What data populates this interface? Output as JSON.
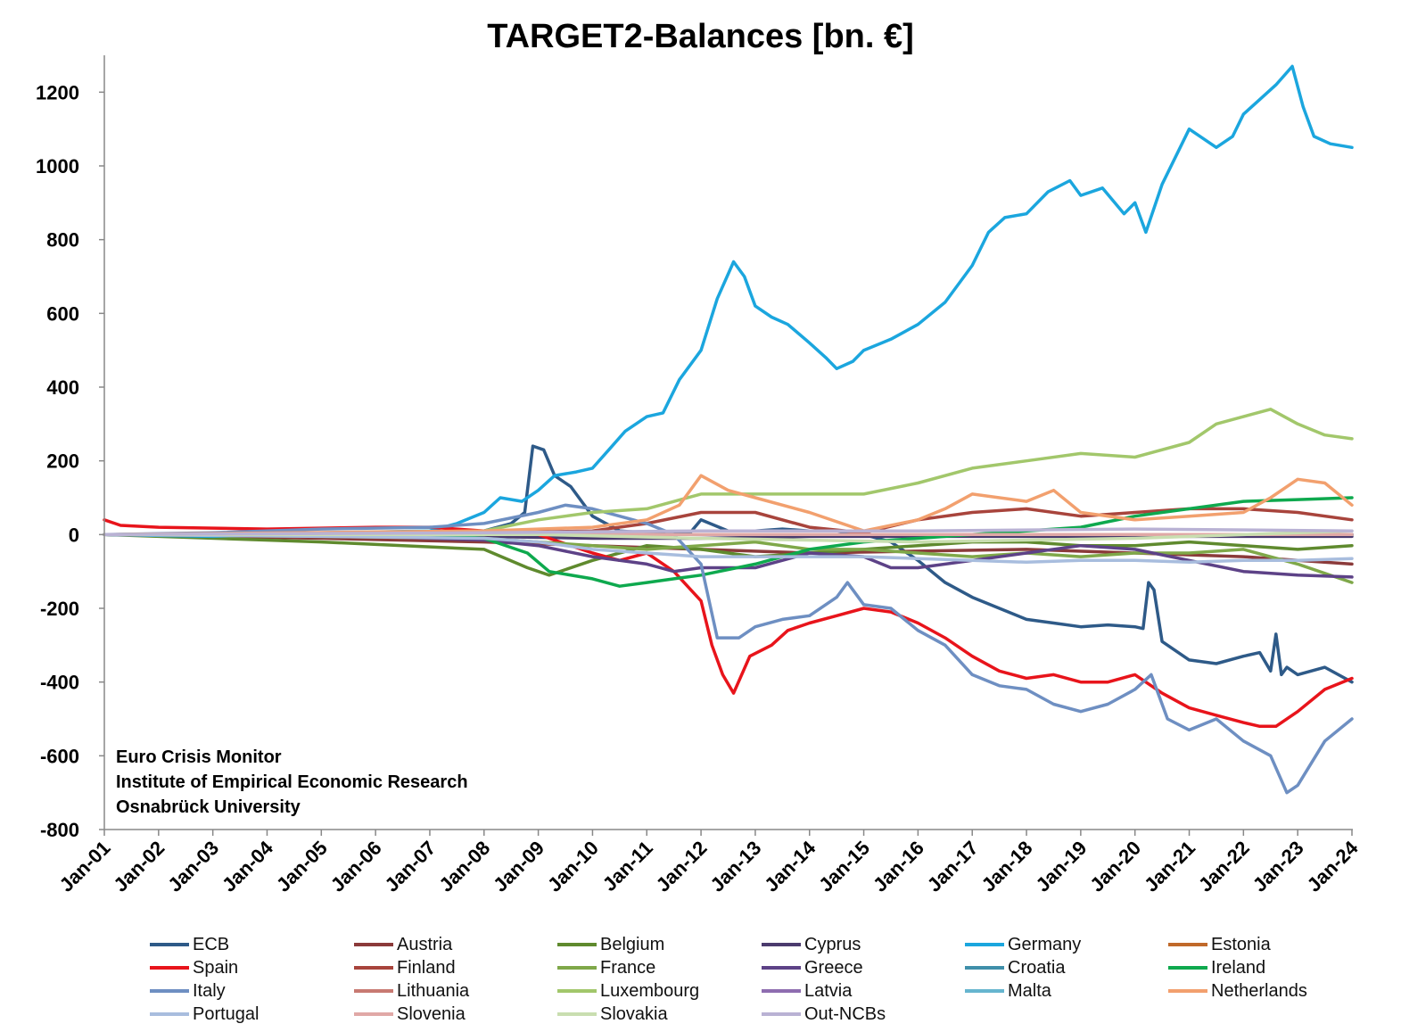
{
  "chart_data": {
    "type": "line",
    "title": "TARGET2-Balances [bn. €]",
    "xlabel": "",
    "ylabel": "",
    "ylim": [
      -800,
      1300
    ],
    "yticks": [
      1200,
      1000,
      800,
      600,
      400,
      200,
      0,
      -200,
      -400,
      -600,
      -800
    ],
    "xticks": [
      "Jan-01",
      "Jan-02",
      "Jan-03",
      "Jan-04",
      "Jan-05",
      "Jan-06",
      "Jan-07",
      "Jan-08",
      "Jan-09",
      "Jan-10",
      "Jan-11",
      "Jan-12",
      "Jan-13",
      "Jan-14",
      "Jan-15",
      "Jan-16",
      "Jan-17",
      "Jan-18",
      "Jan-19",
      "Jan-20",
      "Jan-21",
      "Jan-22",
      "Jan-23",
      "Jan-24"
    ],
    "xlim": [
      2001,
      2024.1
    ],
    "grid": false,
    "legend_position": "bottom",
    "credit": [
      "Euro Crisis Monitor",
      "Institute of Empirical Economic Research",
      "Osnabrück University"
    ],
    "series": [
      {
        "name": "ECB",
        "color": "#2E5A88",
        "x": [
          2001,
          2004,
          2007,
          2008,
          2008.5,
          2008.75,
          2008.9,
          2009.1,
          2009.3,
          2009.6,
          2010,
          2010.5,
          2011,
          2011.8,
          2012,
          2012.5,
          2013,
          2013.5,
          2014,
          2014.5,
          2015,
          2015.5,
          2016,
          2016.5,
          2017,
          2017.5,
          2018,
          2018.5,
          2019,
          2019.5,
          2020,
          2020.15,
          2020.25,
          2020.35,
          2020.5,
          2021,
          2021.5,
          2022,
          2022.3,
          2022.5,
          2022.6,
          2022.7,
          2022.8,
          2023,
          2023.5,
          2024
        ],
        "y": [
          0,
          0,
          0,
          10,
          30,
          60,
          240,
          230,
          160,
          130,
          50,
          10,
          5,
          5,
          40,
          10,
          10,
          15,
          10,
          10,
          0,
          -20,
          -70,
          -130,
          -170,
          -200,
          -230,
          -240,
          -250,
          -245,
          -250,
          -255,
          -130,
          -150,
          -290,
          -340,
          -350,
          -330,
          -320,
          -370,
          -270,
          -380,
          -360,
          -380,
          -360,
          -400
        ]
      },
      {
        "name": "Austria",
        "color": "#8B3A3A",
        "x": [
          2001,
          2005,
          2008,
          2010,
          2012,
          2014,
          2016,
          2018,
          2020,
          2022,
          2024
        ],
        "y": [
          0,
          -10,
          -20,
          -30,
          -40,
          -50,
          -45,
          -40,
          -50,
          -60,
          -80
        ]
      },
      {
        "name": "Belgium",
        "color": "#5F8A2E",
        "x": [
          2001,
          2005,
          2008,
          2008.8,
          2009.2,
          2010,
          2011,
          2012,
          2013,
          2014,
          2015,
          2016,
          2017,
          2018,
          2019,
          2020,
          2021,
          2022,
          2023,
          2024
        ],
        "y": [
          0,
          -20,
          -40,
          -90,
          -110,
          -70,
          -30,
          -40,
          -60,
          -50,
          -40,
          -30,
          -20,
          -20,
          -30,
          -30,
          -20,
          -30,
          -40,
          -30
        ]
      },
      {
        "name": "Cyprus",
        "color": "#4B3B6E",
        "x": [
          2001,
          2008,
          2010,
          2012,
          2014,
          2016,
          2018,
          2020,
          2022,
          2024
        ],
        "y": [
          0,
          -5,
          -10,
          -10,
          -5,
          -5,
          -5,
          -5,
          -5,
          -5
        ]
      },
      {
        "name": "Germany",
        "color": "#1BA6DE",
        "x": [
          2001,
          2003,
          2005,
          2007,
          2007.5,
          2008,
          2008.3,
          2008.7,
          2009,
          2009.3,
          2009.7,
          2010,
          2010.3,
          2010.6,
          2011,
          2011.3,
          2011.6,
          2012,
          2012.3,
          2012.6,
          2012.8,
          2013,
          2013.3,
          2013.6,
          2014,
          2014.3,
          2014.5,
          2014.8,
          2015,
          2015.5,
          2016,
          2016.5,
          2017,
          2017.3,
          2017.6,
          2018,
          2018.4,
          2018.8,
          2019,
          2019.4,
          2019.8,
          2020,
          2020.2,
          2020.5,
          2021,
          2021.5,
          2021.8,
          2022,
          2022.3,
          2022.6,
          2022.9,
          2023.1,
          2023.3,
          2023.6,
          2024
        ],
        "y": [
          0,
          -5,
          5,
          10,
          30,
          60,
          100,
          90,
          120,
          160,
          170,
          180,
          230,
          280,
          320,
          330,
          420,
          500,
          640,
          740,
          700,
          620,
          590,
          570,
          520,
          480,
          450,
          470,
          500,
          530,
          570,
          630,
          730,
          820,
          860,
          870,
          930,
          960,
          920,
          940,
          870,
          900,
          820,
          950,
          1100,
          1050,
          1080,
          1140,
          1180,
          1220,
          1270,
          1160,
          1080,
          1060,
          1050
        ]
      },
      {
        "name": "Estonia",
        "color": "#C0692A",
        "x": [
          2001,
          2012,
          2024
        ],
        "y": [
          0,
          0,
          0
        ]
      },
      {
        "name": "Spain",
        "color": "#E8141B",
        "x": [
          2001,
          2001.3,
          2002,
          2004,
          2006,
          2007,
          2008,
          2009,
          2010,
          2010.5,
          2011,
          2011.5,
          2012,
          2012.2,
          2012.4,
          2012.6,
          2012.9,
          2013.3,
          2013.6,
          2014,
          2014.5,
          2015,
          2015.5,
          2016,
          2016.5,
          2017,
          2017.5,
          2018,
          2018.5,
          2019,
          2019.5,
          2020,
          2020.5,
          2021,
          2021.5,
          2022,
          2022.3,
          2022.6,
          2023,
          2023.5,
          2024
        ],
        "y": [
          40,
          25,
          20,
          15,
          20,
          20,
          10,
          0,
          -50,
          -70,
          -50,
          -100,
          -180,
          -300,
          -380,
          -430,
          -330,
          -300,
          -260,
          -240,
          -220,
          -200,
          -210,
          -240,
          -280,
          -330,
          -370,
          -390,
          -380,
          -400,
          -400,
          -380,
          -430,
          -470,
          -490,
          -510,
          -520,
          -520,
          -480,
          -420,
          -390
        ]
      },
      {
        "name": "Finland",
        "color": "#A8443C",
        "x": [
          2001,
          2008,
          2010,
          2011,
          2012,
          2013,
          2014,
          2015,
          2016,
          2017,
          2018,
          2019,
          2020,
          2021,
          2022,
          2023,
          2024
        ],
        "y": [
          0,
          5,
          10,
          30,
          60,
          60,
          20,
          5,
          40,
          60,
          70,
          50,
          60,
          70,
          70,
          60,
          40
        ]
      },
      {
        "name": "France",
        "color": "#7FA849",
        "x": [
          2001,
          2005,
          2008,
          2009,
          2010,
          2011,
          2012,
          2013,
          2014,
          2015,
          2016,
          2017,
          2018,
          2019,
          2020,
          2021,
          2022,
          2023,
          2024
        ],
        "y": [
          0,
          -5,
          -10,
          -20,
          -30,
          -40,
          -30,
          -20,
          -40,
          -40,
          -50,
          -60,
          -50,
          -60,
          -50,
          -50,
          -40,
          -80,
          -130
        ]
      },
      {
        "name": "Greece",
        "color": "#5D4287",
        "x": [
          2001,
          2006,
          2008,
          2009,
          2010,
          2011,
          2011.5,
          2012,
          2013,
          2014,
          2015,
          2015.5,
          2016,
          2017,
          2018,
          2019,
          2020,
          2021,
          2022,
          2023,
          2024
        ],
        "y": [
          0,
          -5,
          -15,
          -30,
          -60,
          -80,
          -100,
          -90,
          -90,
          -50,
          -60,
          -90,
          -90,
          -70,
          -50,
          -30,
          -40,
          -70,
          -100,
          -110,
          -115
        ]
      },
      {
        "name": "Croatia",
        "color": "#3F8FAA",
        "x": [
          2001,
          2023,
          2024
        ],
        "y": [
          0,
          0,
          0
        ]
      },
      {
        "name": "Ireland",
        "color": "#0EA94E",
        "x": [
          2001,
          2007,
          2008,
          2008.8,
          2009.2,
          2010,
          2010.5,
          2011,
          2011.5,
          2012,
          2013,
          2014,
          2015,
          2016,
          2017,
          2018,
          2019,
          2020,
          2021,
          2022,
          2023,
          2024
        ],
        "y": [
          0,
          0,
          -10,
          -50,
          -100,
          -120,
          -140,
          -130,
          -120,
          -110,
          -80,
          -40,
          -20,
          -10,
          0,
          10,
          20,
          50,
          70,
          90,
          95,
          100
        ]
      },
      {
        "name": "Italy",
        "color": "#6E8FC2",
        "x": [
          2001,
          2003,
          2005,
          2007,
          2008,
          2009,
          2009.5,
          2010,
          2011,
          2011.5,
          2012,
          2012.3,
          2012.7,
          2013,
          2013.5,
          2014,
          2014.5,
          2014.7,
          2015,
          2015.5,
          2016,
          2016.5,
          2017,
          2017.5,
          2018,
          2018.5,
          2019,
          2019.5,
          2020,
          2020.3,
          2020.6,
          2021,
          2021.5,
          2022,
          2022.5,
          2022.8,
          2023,
          2023.5,
          2024
        ],
        "y": [
          0,
          5,
          15,
          20,
          30,
          60,
          80,
          70,
          30,
          0,
          -80,
          -280,
          -280,
          -250,
          -230,
          -220,
          -170,
          -130,
          -190,
          -200,
          -260,
          -300,
          -380,
          -410,
          -420,
          -460,
          -480,
          -460,
          -420,
          -380,
          -500,
          -530,
          -500,
          -560,
          -600,
          -700,
          -680,
          -560,
          -500
        ]
      },
      {
        "name": "Lithuania",
        "color": "#C87A72",
        "x": [
          2001,
          2015,
          2024
        ],
        "y": [
          0,
          0,
          0
        ]
      },
      {
        "name": "Luxembourg",
        "color": "#A2C76B",
        "x": [
          2001,
          2006,
          2008,
          2009,
          2010,
          2011,
          2012,
          2013,
          2014,
          2015,
          2016,
          2017,
          2018,
          2019,
          2020,
          2021,
          2021.5,
          2022,
          2022.5,
          2023,
          2023.5,
          2024
        ],
        "y": [
          0,
          5,
          10,
          40,
          60,
          70,
          110,
          110,
          110,
          110,
          140,
          180,
          200,
          220,
          210,
          250,
          300,
          320,
          340,
          300,
          270,
          260
        ]
      },
      {
        "name": "Latvia",
        "color": "#8E6DB0",
        "x": [
          2001,
          2014,
          2024
        ],
        "y": [
          0,
          0,
          0
        ]
      },
      {
        "name": "Malta",
        "color": "#66B5CF",
        "x": [
          2001,
          2008,
          2024
        ],
        "y": [
          0,
          0,
          0
        ]
      },
      {
        "name": "Netherlands",
        "color": "#F2A06E",
        "x": [
          2001,
          2008,
          2010,
          2011,
          2011.6,
          2012,
          2012.5,
          2013,
          2014,
          2015,
          2016,
          2016.5,
          2017,
          2018,
          2018.5,
          2019,
          2020,
          2021,
          2022,
          2022.5,
          2023,
          2023.5,
          2024
        ],
        "y": [
          0,
          10,
          20,
          40,
          80,
          160,
          120,
          100,
          60,
          10,
          40,
          70,
          110,
          90,
          120,
          60,
          40,
          50,
          60,
          100,
          150,
          140,
          80
        ]
      },
      {
        "name": "Portugal",
        "color": "#A8BDDE",
        "x": [
          2001,
          2005,
          2008,
          2009,
          2010,
          2011,
          2012,
          2013,
          2014,
          2015,
          2016,
          2017,
          2018,
          2019,
          2020,
          2021,
          2022,
          2023,
          2024
        ],
        "y": [
          0,
          -5,
          -10,
          -20,
          -40,
          -50,
          -60,
          -60,
          -60,
          -60,
          -65,
          -70,
          -75,
          -70,
          -70,
          -75,
          -70,
          -70,
          -65
        ]
      },
      {
        "name": "Slovenia",
        "color": "#E0A8A6",
        "x": [
          2001,
          2007,
          2024
        ],
        "y": [
          0,
          0,
          0
        ]
      },
      {
        "name": "Slovakia",
        "color": "#C9DEB0",
        "x": [
          2001,
          2009,
          2012,
          2016,
          2020,
          2024
        ],
        "y": [
          0,
          0,
          -10,
          -20,
          -10,
          10
        ]
      },
      {
        "name": "Out-NCBs",
        "color": "#B9B2D4",
        "x": [
          2001,
          2008,
          2012,
          2016,
          2020,
          2024
        ],
        "y": [
          0,
          5,
          10,
          10,
          15,
          10
        ]
      }
    ]
  }
}
